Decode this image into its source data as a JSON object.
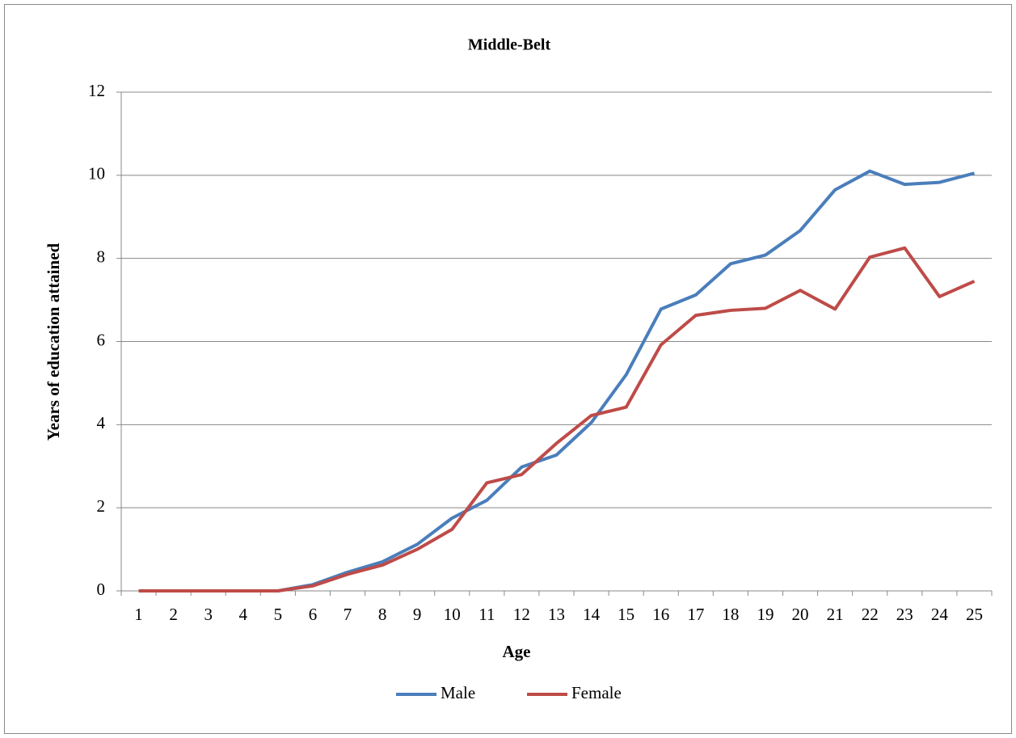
{
  "chart_data": {
    "type": "line",
    "title": "Middle-Belt",
    "x_label": "Age",
    "y_label": "Years of education attained",
    "categories": [
      1,
      2,
      3,
      4,
      5,
      6,
      7,
      8,
      9,
      10,
      11,
      12,
      13,
      14,
      15,
      16,
      17,
      18,
      19,
      20,
      21,
      22,
      23,
      24,
      25
    ],
    "series": [
      {
        "name": "Male",
        "color": "#4a7ebb",
        "values": [
          0,
          0,
          0,
          0,
          0,
          0.15,
          0.45,
          0.7,
          1.12,
          1.75,
          2.18,
          2.98,
          3.27,
          4.05,
          5.2,
          6.78,
          7.12,
          7.87,
          8.08,
          8.67,
          9.65,
          10.1,
          9.78,
          9.83,
          10.05
        ]
      },
      {
        "name": "Female",
        "color": "#be4b48",
        "values": [
          0,
          0,
          0,
          0,
          0,
          0.12,
          0.4,
          0.62,
          1.0,
          1.48,
          2.6,
          2.8,
          3.55,
          4.22,
          4.42,
          5.92,
          6.63,
          6.75,
          6.8,
          7.23,
          6.78,
          8.03,
          8.25,
          7.08,
          7.45
        ]
      }
    ],
    "ylim": [
      0,
      12
    ],
    "yticks": [
      0,
      2,
      4,
      6,
      8,
      10,
      12
    ],
    "grid": true,
    "legend": "bottom"
  }
}
